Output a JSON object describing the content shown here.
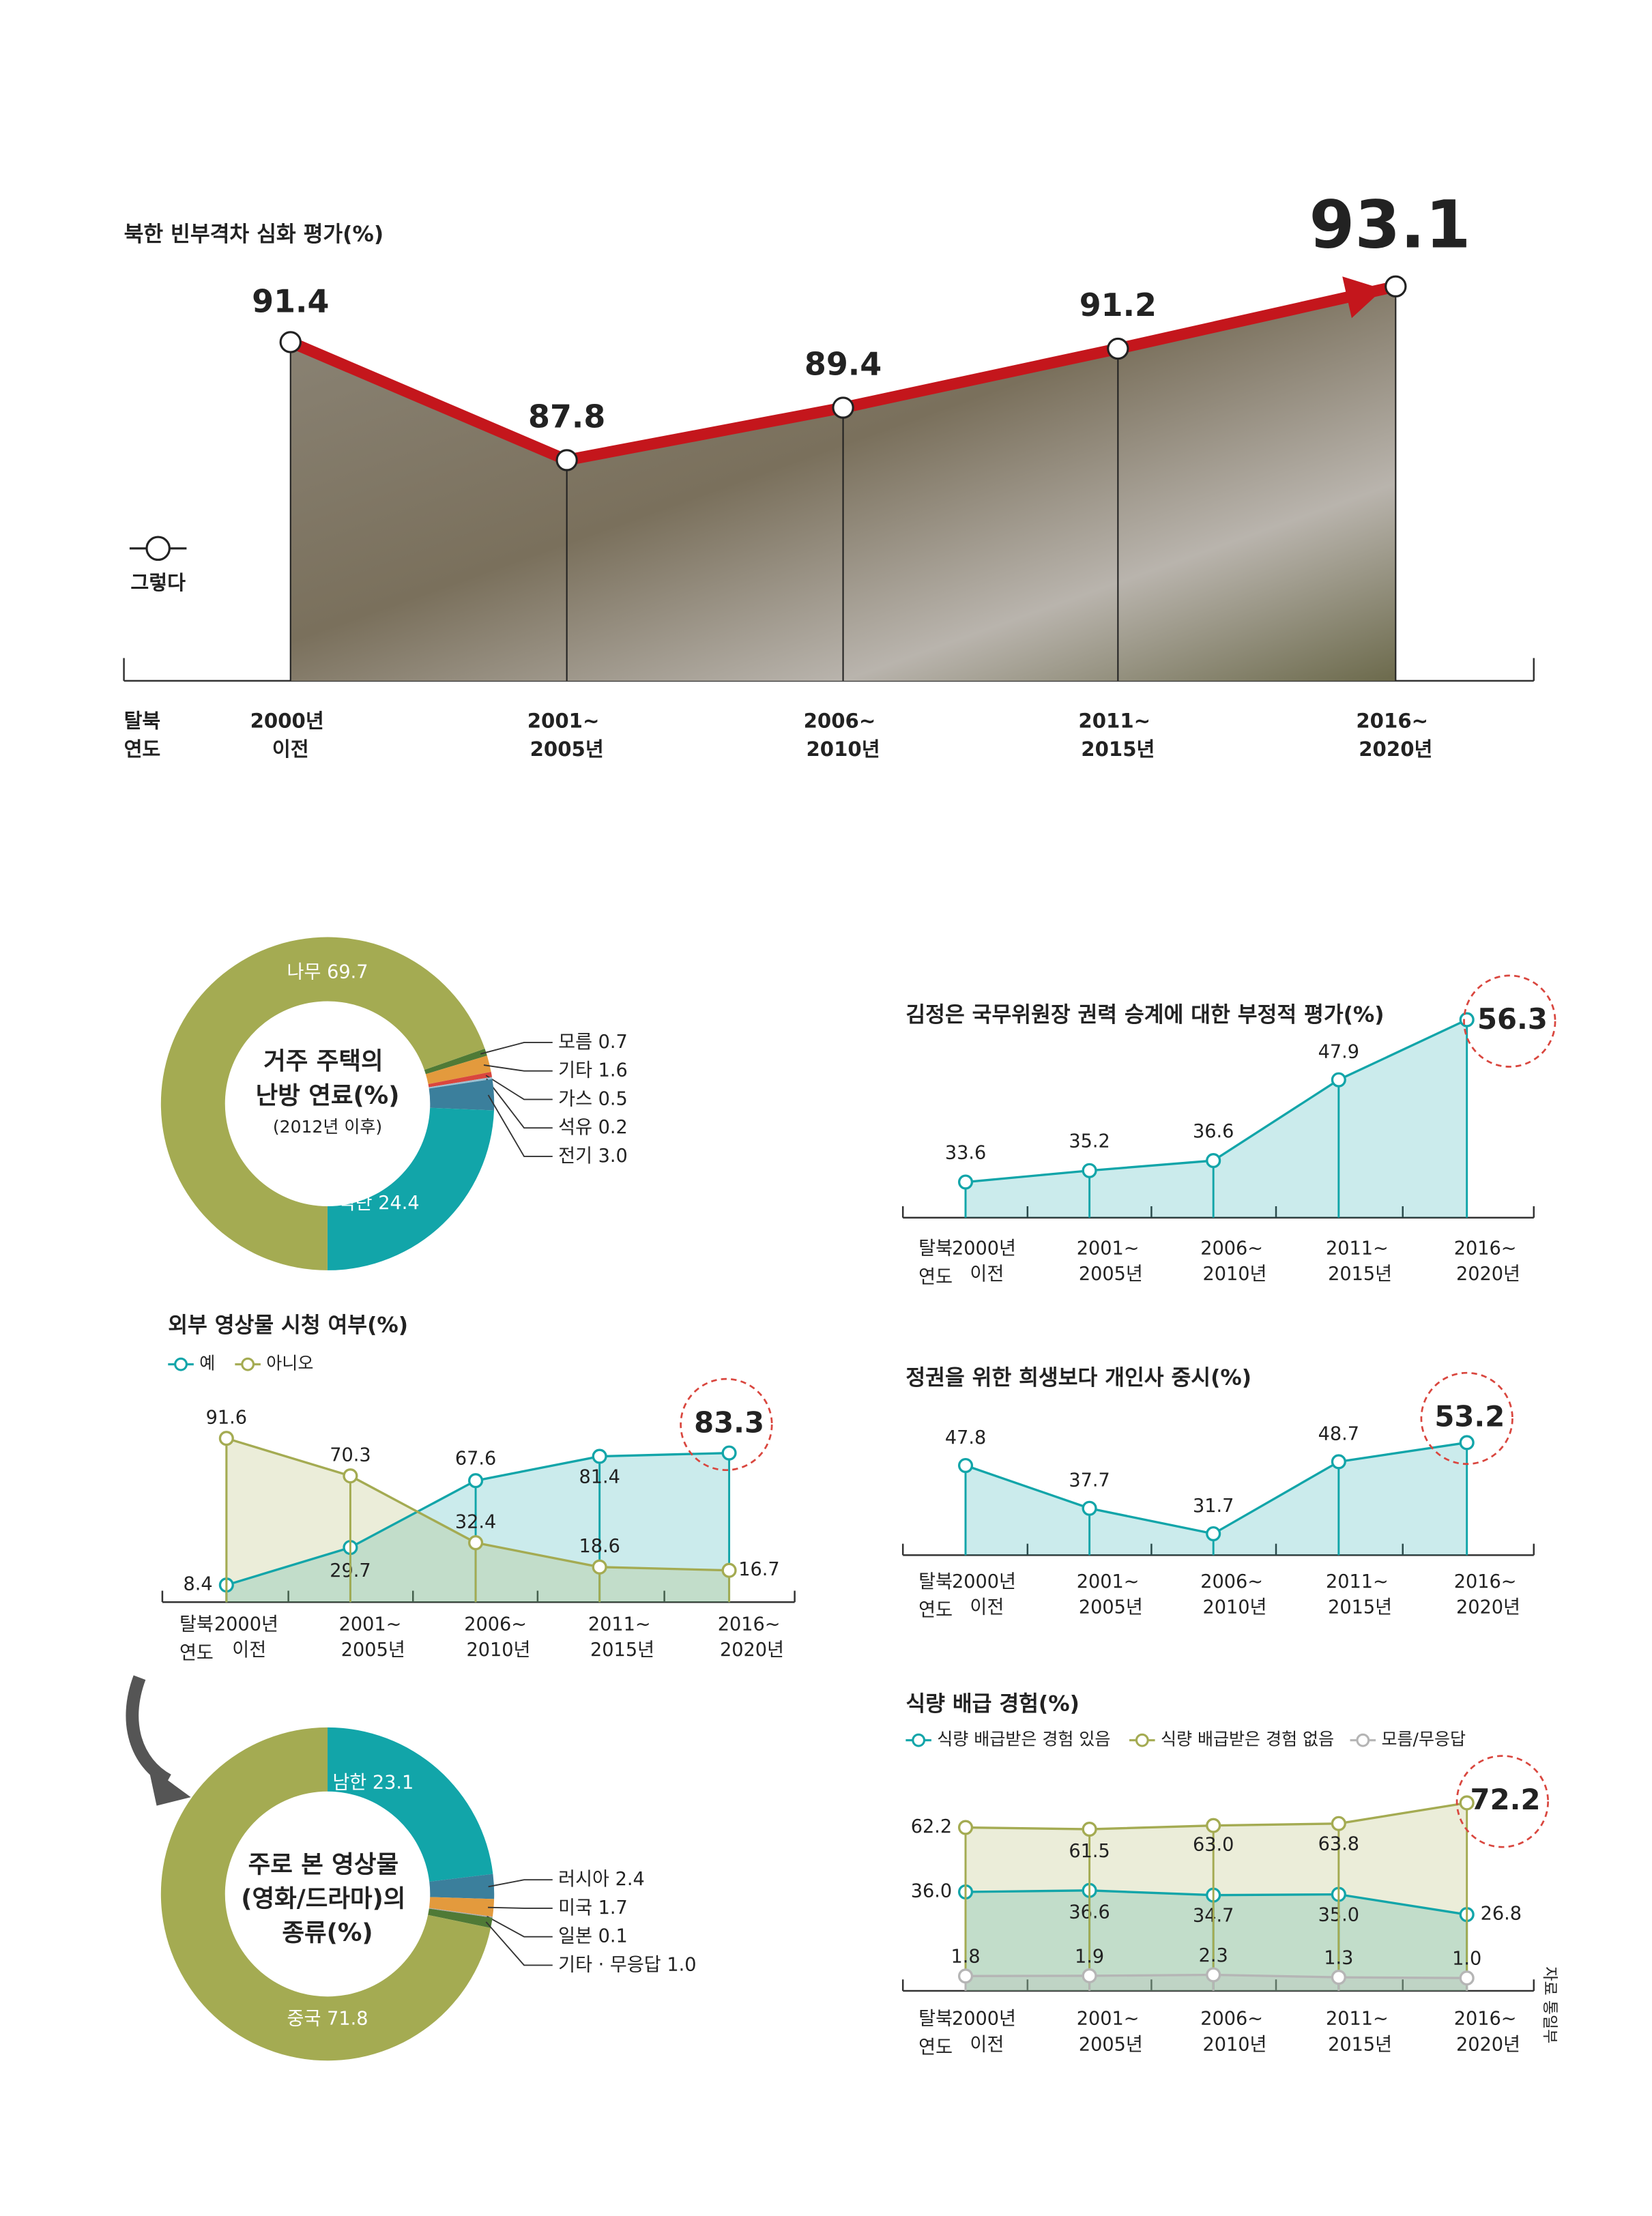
{
  "source": "자료 통일부",
  "chart_data": [
    {
      "type": "line",
      "title": "북한 빈부격차 심화 평가(%)",
      "x_label": "탈북\n연도",
      "categories": [
        "2000년\n이전",
        "2001~\n2005년",
        "2006~\n2010년",
        "2011~\n2015년",
        "2016~\n2020년"
      ],
      "series": [
        {
          "name": "그렇다",
          "color": "#c4161c",
          "values": [
            91.4,
            87.8,
            89.4,
            91.2,
            93.1
          ]
        }
      ]
    },
    {
      "type": "donut",
      "title": "거주 주택의\n난방 연료(%)",
      "subtitle": "(2012년 이후)",
      "categories": [
        "모름",
        "기타",
        "가스",
        "석유",
        "전기",
        "석탄",
        "나무"
      ],
      "values": [
        0.7,
        1.6,
        0.5,
        0.2,
        3.0,
        24.4,
        69.7
      ],
      "value_labels": [
        "0.7",
        "1.6",
        "0.5",
        "0.2",
        "3.0",
        "24.4",
        "69.7"
      ],
      "colors": [
        "#4f7a36",
        "#e39a3d",
        "#d9463e",
        "#9cc0d2",
        "#3b7f9c",
        "#12a5a9",
        "#a4ab52"
      ]
    },
    {
      "type": "line",
      "title": "외부 영상물 시청 여부(%)",
      "x_label": "탈북\n연도",
      "categories": [
        "2000년\n이전",
        "2001~\n2005년",
        "2006~\n2010년",
        "2011~\n2015년",
        "2016~\n2020년"
      ],
      "series": [
        {
          "name": "예",
          "color": "#12a5a9",
          "values": [
            8.4,
            29.7,
            67.6,
            81.4,
            83.3
          ]
        },
        {
          "name": "아니오",
          "color": "#a4ab52",
          "values": [
            91.6,
            70.3,
            32.4,
            18.6,
            16.7
          ]
        }
      ]
    },
    {
      "type": "donut",
      "title": "주로 본 영상물\n(영화/드라마)의\n종류(%)",
      "categories": [
        "남한",
        "러시아",
        "미국",
        "일본",
        "기타 · 무응답",
        "중국"
      ],
      "values": [
        23.1,
        2.4,
        1.7,
        0.1,
        1.0,
        71.8
      ],
      "value_labels": [
        "23.1",
        "2.4",
        "1.7",
        "0.1",
        "1.0",
        "71.8"
      ],
      "colors": [
        "#12a5a9",
        "#3b7f9c",
        "#e39a3d",
        "#aaaaaa",
        "#4f7a36",
        "#a4ab52"
      ]
    },
    {
      "type": "line",
      "title": "김정은 국무위원장 권력 승계에 대한 부정적 평가(%)",
      "x_label": "탈북\n연도",
      "categories": [
        "2000년\n이전",
        "2001~\n2005년",
        "2006~\n2010년",
        "2011~\n2015년",
        "2016~\n2020년"
      ],
      "series": [
        {
          "color": "#12a5a9",
          "values": [
            33.6,
            35.2,
            36.6,
            47.9,
            56.3
          ]
        }
      ]
    },
    {
      "type": "line",
      "title": "정권을 위한 희생보다 개인사 중시(%)",
      "x_label": "탈북\n연도",
      "categories": [
        "2000년\n이전",
        "2001~\n2005년",
        "2006~\n2010년",
        "2011~\n2015년",
        "2016~\n2020년"
      ],
      "series": [
        {
          "color": "#12a5a9",
          "values": [
            47.8,
            37.7,
            31.7,
            48.7,
            53.2
          ]
        }
      ]
    },
    {
      "type": "line",
      "title": "식량 배급 경험(%)",
      "x_label": "탈북\n연도",
      "categories": [
        "2000년\n이전",
        "2001~\n2005년",
        "2006~\n2010년",
        "2011~\n2015년",
        "2016~\n2020년"
      ],
      "series": [
        {
          "name": "식량 배급받은 경험 있음",
          "color": "#12a5a9",
          "values": [
            36.0,
            36.6,
            34.7,
            35.0,
            26.8
          ],
          "value_labels": [
            "36.0",
            "36.6",
            "34.7",
            "35.0",
            "26.8"
          ]
        },
        {
          "name": "식량 배급받은 경험 없음",
          "color": "#a4ab52",
          "values": [
            62.2,
            61.5,
            63.0,
            63.8,
            72.2
          ],
          "value_labels": [
            "62.2",
            "61.5",
            "63.0",
            "63.8",
            "72.2"
          ]
        },
        {
          "name": "모름/무응답",
          "color": "#b5b5b5",
          "values": [
            1.8,
            1.9,
            2.3,
            1.3,
            1.0
          ],
          "value_labels": [
            "1.8",
            "1.9",
            "2.3",
            "1.3",
            "1.0"
          ]
        }
      ]
    }
  ]
}
